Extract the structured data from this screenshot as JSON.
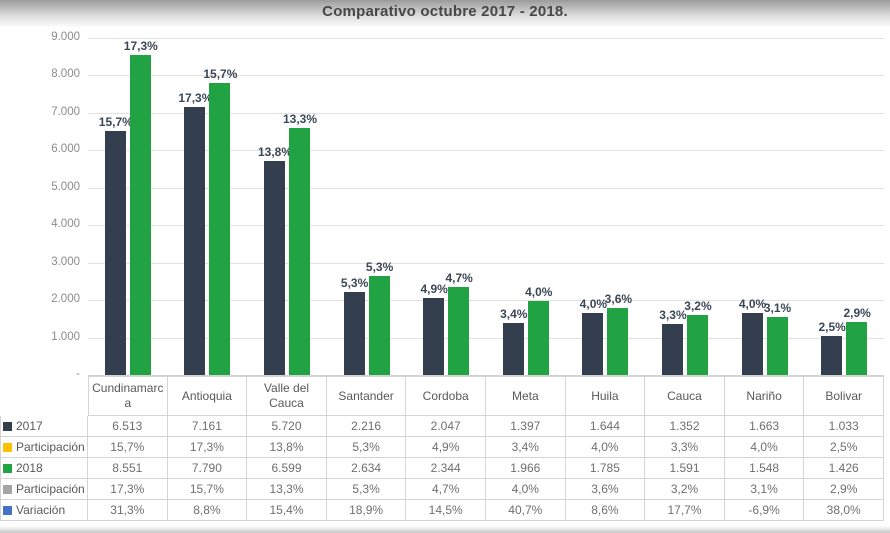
{
  "chart_data": {
    "type": "bar",
    "title": "Comparativo octubre 2017 - 2018.",
    "categories": [
      "Cundinamarca",
      "Antioquia",
      "Valle del Cauca",
      "Santander",
      "Cordoba",
      "Meta",
      "Huila",
      "Cauca",
      "Nariño",
      "Bolivar"
    ],
    "series": [
      {
        "name": "2017",
        "color": "#333F4E",
        "values": [
          6513,
          7161,
          5720,
          2216,
          2047,
          1397,
          1644,
          1352,
          1663,
          1033
        ],
        "data_labels": [
          "15,7%",
          "17,3%",
          "13,8%",
          "5,3%",
          "4,9%",
          "3,4%",
          "4,0%",
          "3,3%",
          "4,0%",
          "2,5%"
        ]
      },
      {
        "name": "2018",
        "color": "#21A343",
        "values": [
          8551,
          7790,
          6599,
          2634,
          2344,
          1966,
          1785,
          1591,
          1548,
          1426
        ],
        "data_labels": [
          "17,3%",
          "15,7%",
          "13,3%",
          "5,3%",
          "4,7%",
          "4,0%",
          "3,6%",
          "3,2%",
          "3,1%",
          "2,9%"
        ]
      }
    ],
    "xlabel": "",
    "ylabel": "",
    "ylim": [
      0,
      9000
    ],
    "ytick_labels": [
      "9.000",
      "8.000",
      "7.000",
      "6.000",
      "5.000",
      "4.000",
      "3.000",
      "2.000",
      "1.000",
      "-"
    ],
    "grid": true,
    "legend_position": "data-table-left-column"
  },
  "data_table": {
    "rows": [
      {
        "label": "2017",
        "swatch_color": "#333F4E",
        "swatch_name": "series-2017-swatch",
        "values": [
          "6.513",
          "7.161",
          "5.720",
          "2.216",
          "2.047",
          "1.397",
          "1.644",
          "1.352",
          "1.663",
          "1.033"
        ]
      },
      {
        "label": "Participación",
        "swatch_color": "#FFC000",
        "swatch_name": "participacion-2017-swatch",
        "values": [
          "15,7%",
          "17,3%",
          "13,8%",
          "5,3%",
          "4,9%",
          "3,4%",
          "4,0%",
          "3,3%",
          "4,0%",
          "2,5%"
        ]
      },
      {
        "label": "2018",
        "swatch_color": "#21A343",
        "swatch_name": "series-2018-swatch",
        "values": [
          "8.551",
          "7.790",
          "6.599",
          "2.634",
          "2.344",
          "1.966",
          "1.785",
          "1.591",
          "1.548",
          "1.426"
        ]
      },
      {
        "label": "Participación",
        "swatch_color": "#A5A5A5",
        "swatch_name": "participacion-2018-swatch",
        "values": [
          "17,3%",
          "15,7%",
          "13,3%",
          "5,3%",
          "4,7%",
          "4,0%",
          "3,6%",
          "3,2%",
          "3,1%",
          "2,9%"
        ]
      },
      {
        "label": "Variación",
        "swatch_color": "#4472C4",
        "swatch_name": "variacion-swatch",
        "values": [
          "31,3%",
          "8,8%",
          "15,4%",
          "18,9%",
          "14,5%",
          "40,7%",
          "8,6%",
          "17,7%",
          "-6,9%",
          "38,0%"
        ]
      }
    ]
  },
  "colors": {
    "bar_2017": "#333F4E",
    "bar_2018": "#21A343",
    "gridline": "#E1E1E1",
    "table_border": "#D4D4D4",
    "axis_text": "#8C8C8C",
    "title_text": "#474747"
  }
}
